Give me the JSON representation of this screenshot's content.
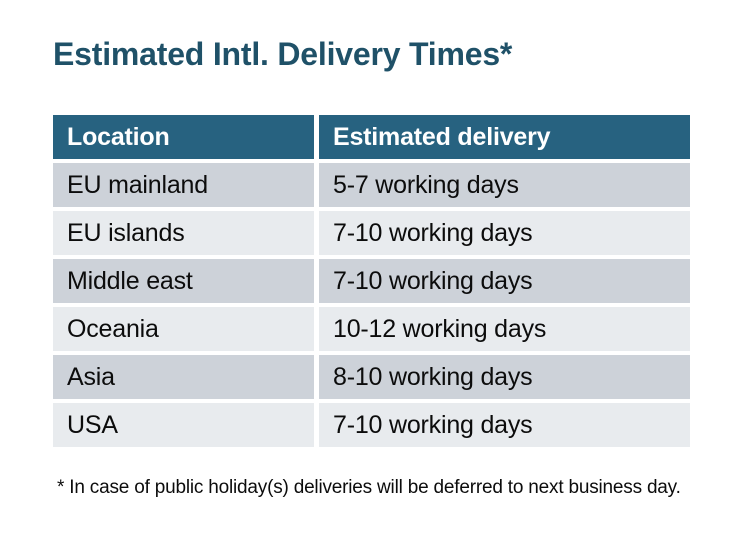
{
  "chart_data": {
    "type": "table",
    "title": "Estimated Intl. Delivery Times*",
    "columns": [
      "Location",
      "Estimated delivery"
    ],
    "rows": [
      [
        "EU mainland",
        "5-7 working days"
      ],
      [
        "EU islands",
        "7-10 working days"
      ],
      [
        "Middle east",
        "7-10 working days"
      ],
      [
        "Oceania",
        "10-12 working days"
      ],
      [
        "Asia",
        "8-10 working days"
      ],
      [
        "USA",
        "7-10 working days"
      ]
    ],
    "footnote": "* In case of public holiday(s) deliveries will be deferred to next business day.",
    "layout": {
      "legend": "none",
      "grid": "off",
      "row_striping": "alternating"
    }
  },
  "colors": {
    "page_bg": "#ffffff",
    "title_text": "#1f5168",
    "header_bg": "#276280",
    "header_text": "#ffffff",
    "row_odd_bg": "#cdd2d9",
    "row_even_bg": "#e8ebee",
    "body_text": "#0c0c0c"
  }
}
